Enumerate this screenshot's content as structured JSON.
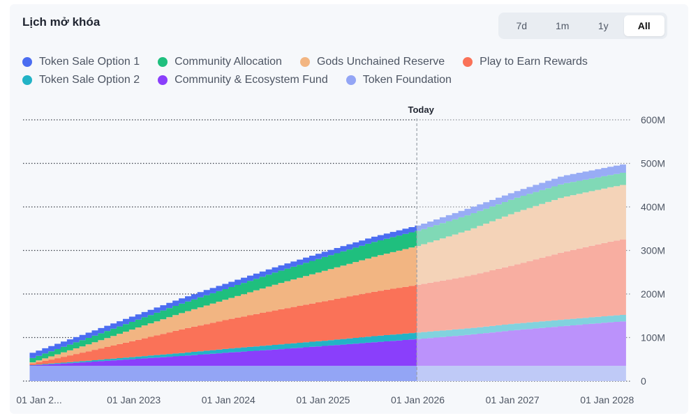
{
  "header": {
    "title": "Lịch mở khóa"
  },
  "range": {
    "options": [
      "7d",
      "1m",
      "1y",
      "All"
    ],
    "selected": "All"
  },
  "legend": [
    {
      "label": "Token Sale Option 1",
      "color": "#4b6df1"
    },
    {
      "label": "Community Allocation",
      "color": "#1fbf7e"
    },
    {
      "label": "Gods Unchained Reserve",
      "color": "#f2b582"
    },
    {
      "label": "Play to Earn Rewards",
      "color": "#fa7258"
    },
    {
      "label": "Token Sale Option 2",
      "color": "#22b3c6"
    },
    {
      "label": "Community & Ecosystem Fund",
      "color": "#8a3ffb"
    },
    {
      "label": "Token Foundation",
      "color": "#93a5f5"
    }
  ],
  "chart_data": {
    "type": "area",
    "stacked": true,
    "title": "Lịch mở khóa",
    "today_label": "Today",
    "today_x": 2025.99,
    "xlim": [
      2021.83,
      2028.26
    ],
    "ylim": [
      0,
      600
    ],
    "x_ticks": [
      {
        "label": "01 Jan 2...",
        "x": 2022.0
      },
      {
        "label": "01 Jan 2023",
        "x": 2023.0
      },
      {
        "label": "01 Jan 2024",
        "x": 2024.0
      },
      {
        "label": "01 Jan 2025",
        "x": 2025.0
      },
      {
        "label": "01 Jan 2026",
        "x": 2026.0
      },
      {
        "label": "01 Jan 2027",
        "x": 2027.0
      },
      {
        "label": "01 Jan 2028",
        "x": 2028.0
      }
    ],
    "y_ticks": [
      {
        "label": "0",
        "value": 0
      },
      {
        "label": "100M",
        "value": 100
      },
      {
        "label": "200M",
        "value": 200
      },
      {
        "label": "300M",
        "value": 300
      },
      {
        "label": "400M",
        "value": 400
      },
      {
        "label": "500M",
        "value": 500
      },
      {
        "label": "600M",
        "value": 600
      }
    ],
    "stack_order": [
      "Token Foundation",
      "Community & Ecosystem Fund",
      "Token Sale Option 2",
      "Play to Earn Rewards",
      "Gods Unchained Reserve",
      "Community Allocation",
      "Token Sale Option 1"
    ],
    "x": [
      2021.9,
      2022.5,
      2023.0,
      2023.5,
      2024.0,
      2024.5,
      2025.0,
      2025.5,
      2026.0,
      2026.5,
      2027.0,
      2027.5,
      2028.0,
      2028.2
    ],
    "series": [
      {
        "name": "Token Foundation",
        "color": "#93a5f5",
        "values": [
          35,
          35,
          35,
          35,
          35,
          35,
          35,
          35,
          35,
          35,
          35,
          35,
          35,
          35
        ]
      },
      {
        "name": "Community & Ecosystem Fund",
        "color": "#8a3ffb",
        "values": [
          1,
          9,
          16,
          23,
          31,
          38,
          46,
          54,
          62,
          71,
          82,
          91,
          100,
          103
        ]
      },
      {
        "name": "Token Sale Option 2",
        "color": "#22b3c6",
        "values": [
          1,
          3,
          5,
          7,
          9,
          11,
          12,
          14,
          15,
          15,
          15,
          15,
          15,
          15
        ]
      },
      {
        "name": "Play to Earn Rewards",
        "color": "#fa7258",
        "values": [
          3,
          22,
          38,
          55,
          68,
          80,
          91,
          102,
          110,
          120,
          135,
          155,
          170,
          175
        ]
      },
      {
        "name": "Gods Unchained Reserve",
        "color": "#f2b582",
        "values": [
          3,
          16,
          28,
          38,
          48,
          60,
          70,
          80,
          90,
          105,
          120,
          126,
          125,
          125
        ]
      },
      {
        "name": "Community Allocation",
        "color": "#1fbf7e",
        "values": [
          10,
          15,
          18,
          22,
          25,
          28,
          32,
          34,
          35,
          35,
          33,
          31,
          28,
          28
        ]
      },
      {
        "name": "Token Sale Option 1",
        "color": "#4b6df1",
        "values": [
          12,
          12,
          12,
          12,
          12,
          12,
          12,
          12,
          12,
          15,
          15,
          18,
          19,
          19
        ]
      }
    ]
  }
}
